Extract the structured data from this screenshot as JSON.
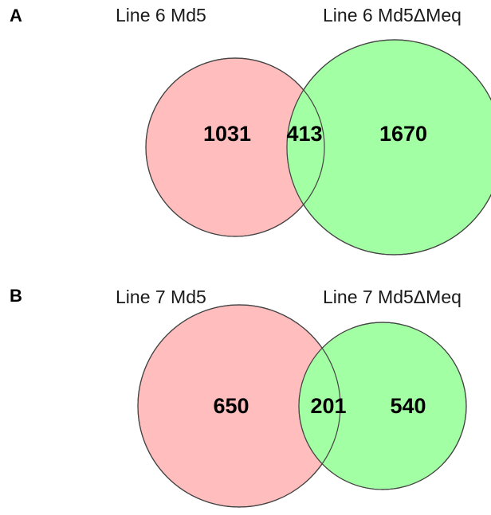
{
  "colors": {
    "left_set": "#ffbdbd",
    "right_set": "#a3ffa3",
    "overlap": "#a3ffa3",
    "outline": "#444444"
  },
  "panels": [
    {
      "letter": "A",
      "left_label": "Line 6 Md5",
      "right_label": "Line 6 Md5ΔMeq",
      "left_only": "1031",
      "overlap": "413",
      "right_only": "1670"
    },
    {
      "letter": "B",
      "left_label": "Line 7 Md5",
      "right_label": "Line 7 Md5ΔMeq",
      "left_only": "650",
      "overlap": "201",
      "right_only": "540"
    }
  ]
}
